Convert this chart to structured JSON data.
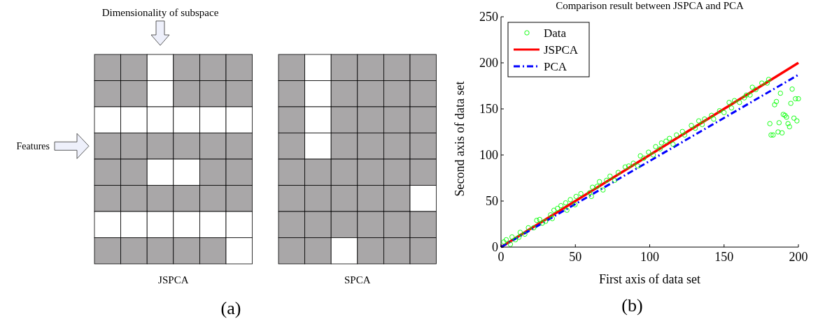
{
  "chart_data": [
    {
      "type": "other",
      "annotations": [
        "Dimensionality of subspace",
        "Features",
        "JSPCA",
        "SPCA",
        "(a)"
      ]
    },
    {
      "type": "scatter",
      "title": "Comparison result between JSPCA and PCA",
      "xlabel": "First axis of data set",
      "ylabel": "Second axis of  data set",
      "annotations": [
        "(b)"
      ],
      "xlim": [
        0,
        200
      ],
      "xticks": [
        0,
        50,
        100,
        150,
        200
      ],
      "ylim": [
        0,
        250
      ],
      "yticks": [
        0,
        50,
        100,
        150,
        200,
        250
      ],
      "legend": "top left",
      "series": [
        {
          "name": "Data",
          "type": "scatter",
          "marker": "circle",
          "color": "#00ff00",
          "x": [
            1.9,
            3.5,
            6.3,
            7.4,
            9.7,
            12,
            12.9,
            16,
            18.4,
            22,
            24,
            26,
            27.8,
            30,
            33.3,
            34.5,
            35.6,
            38,
            40.3,
            44.3,
            43.5,
            46.6,
            49.8,
            50.5,
            53.7,
            59.6,
            60.8,
            61.5,
            64.7,
            66.2,
            68.6,
            71,
            73.3,
            76.5,
            78.8,
            83.5,
            85.9,
            89,
            92,
            93.7,
            96,
            99.2,
            102.4,
            104,
            107,
            107.9,
            111,
            113.3,
            115.7,
            118,
            122,
            123.5,
            128,
            130.6,
            133,
            135.3,
            136.9,
            141.6,
            143,
            147,
            150,
            153.4,
            155,
            157,
            160.4,
            163.6,
            165,
            167.5,
            169,
            171.4,
            175.4,
            179,
            180,
            180.8,
            181.6,
            183,
            184,
            185.2,
            186.3,
            187,
            187.9,
            189,
            189.8,
            191,
            192,
            193,
            194,
            194.9,
            195.8,
            197,
            198,
            199,
            200
          ],
          "values": [
            5.6,
            8,
            3,
            11,
            8,
            10.6,
            16,
            14,
            21,
            21,
            29,
            30,
            26,
            28,
            35,
            31,
            40,
            42,
            45,
            40,
            48,
            51.5,
            46,
            55,
            58,
            59,
            55,
            65,
            66,
            71,
            62,
            72.5,
            77,
            72.5,
            81,
            87,
            88,
            91,
            88,
            99,
            96.5,
            103,
            100,
            109,
            106.6,
            113,
            115,
            118,
            111.6,
            121.7,
            125.5,
            121.7,
            132,
            129,
            137,
            133,
            139,
            143,
            139,
            148,
            146,
            157,
            151,
            159,
            157,
            162,
            165,
            165,
            173.5,
            171,
            178,
            178,
            182,
            134,
            121.7,
            121.7,
            154.5,
            158,
            125,
            135,
            167,
            124,
            144,
            143,
            141,
            134,
            130.6,
            156,
            171.5,
            140,
            161,
            137,
            161
          ]
        },
        {
          "name": "JSPCA",
          "type": "line",
          "color": "#ff0000",
          "line_style": "solid",
          "x": [
            0,
            200
          ],
          "values": [
            0,
            200
          ]
        },
        {
          "name": "PCA",
          "type": "line",
          "color": "#0000ff",
          "line_style": "dashdot",
          "x": [
            0,
            200
          ],
          "values": [
            0,
            187
          ]
        }
      ]
    }
  ]
}
